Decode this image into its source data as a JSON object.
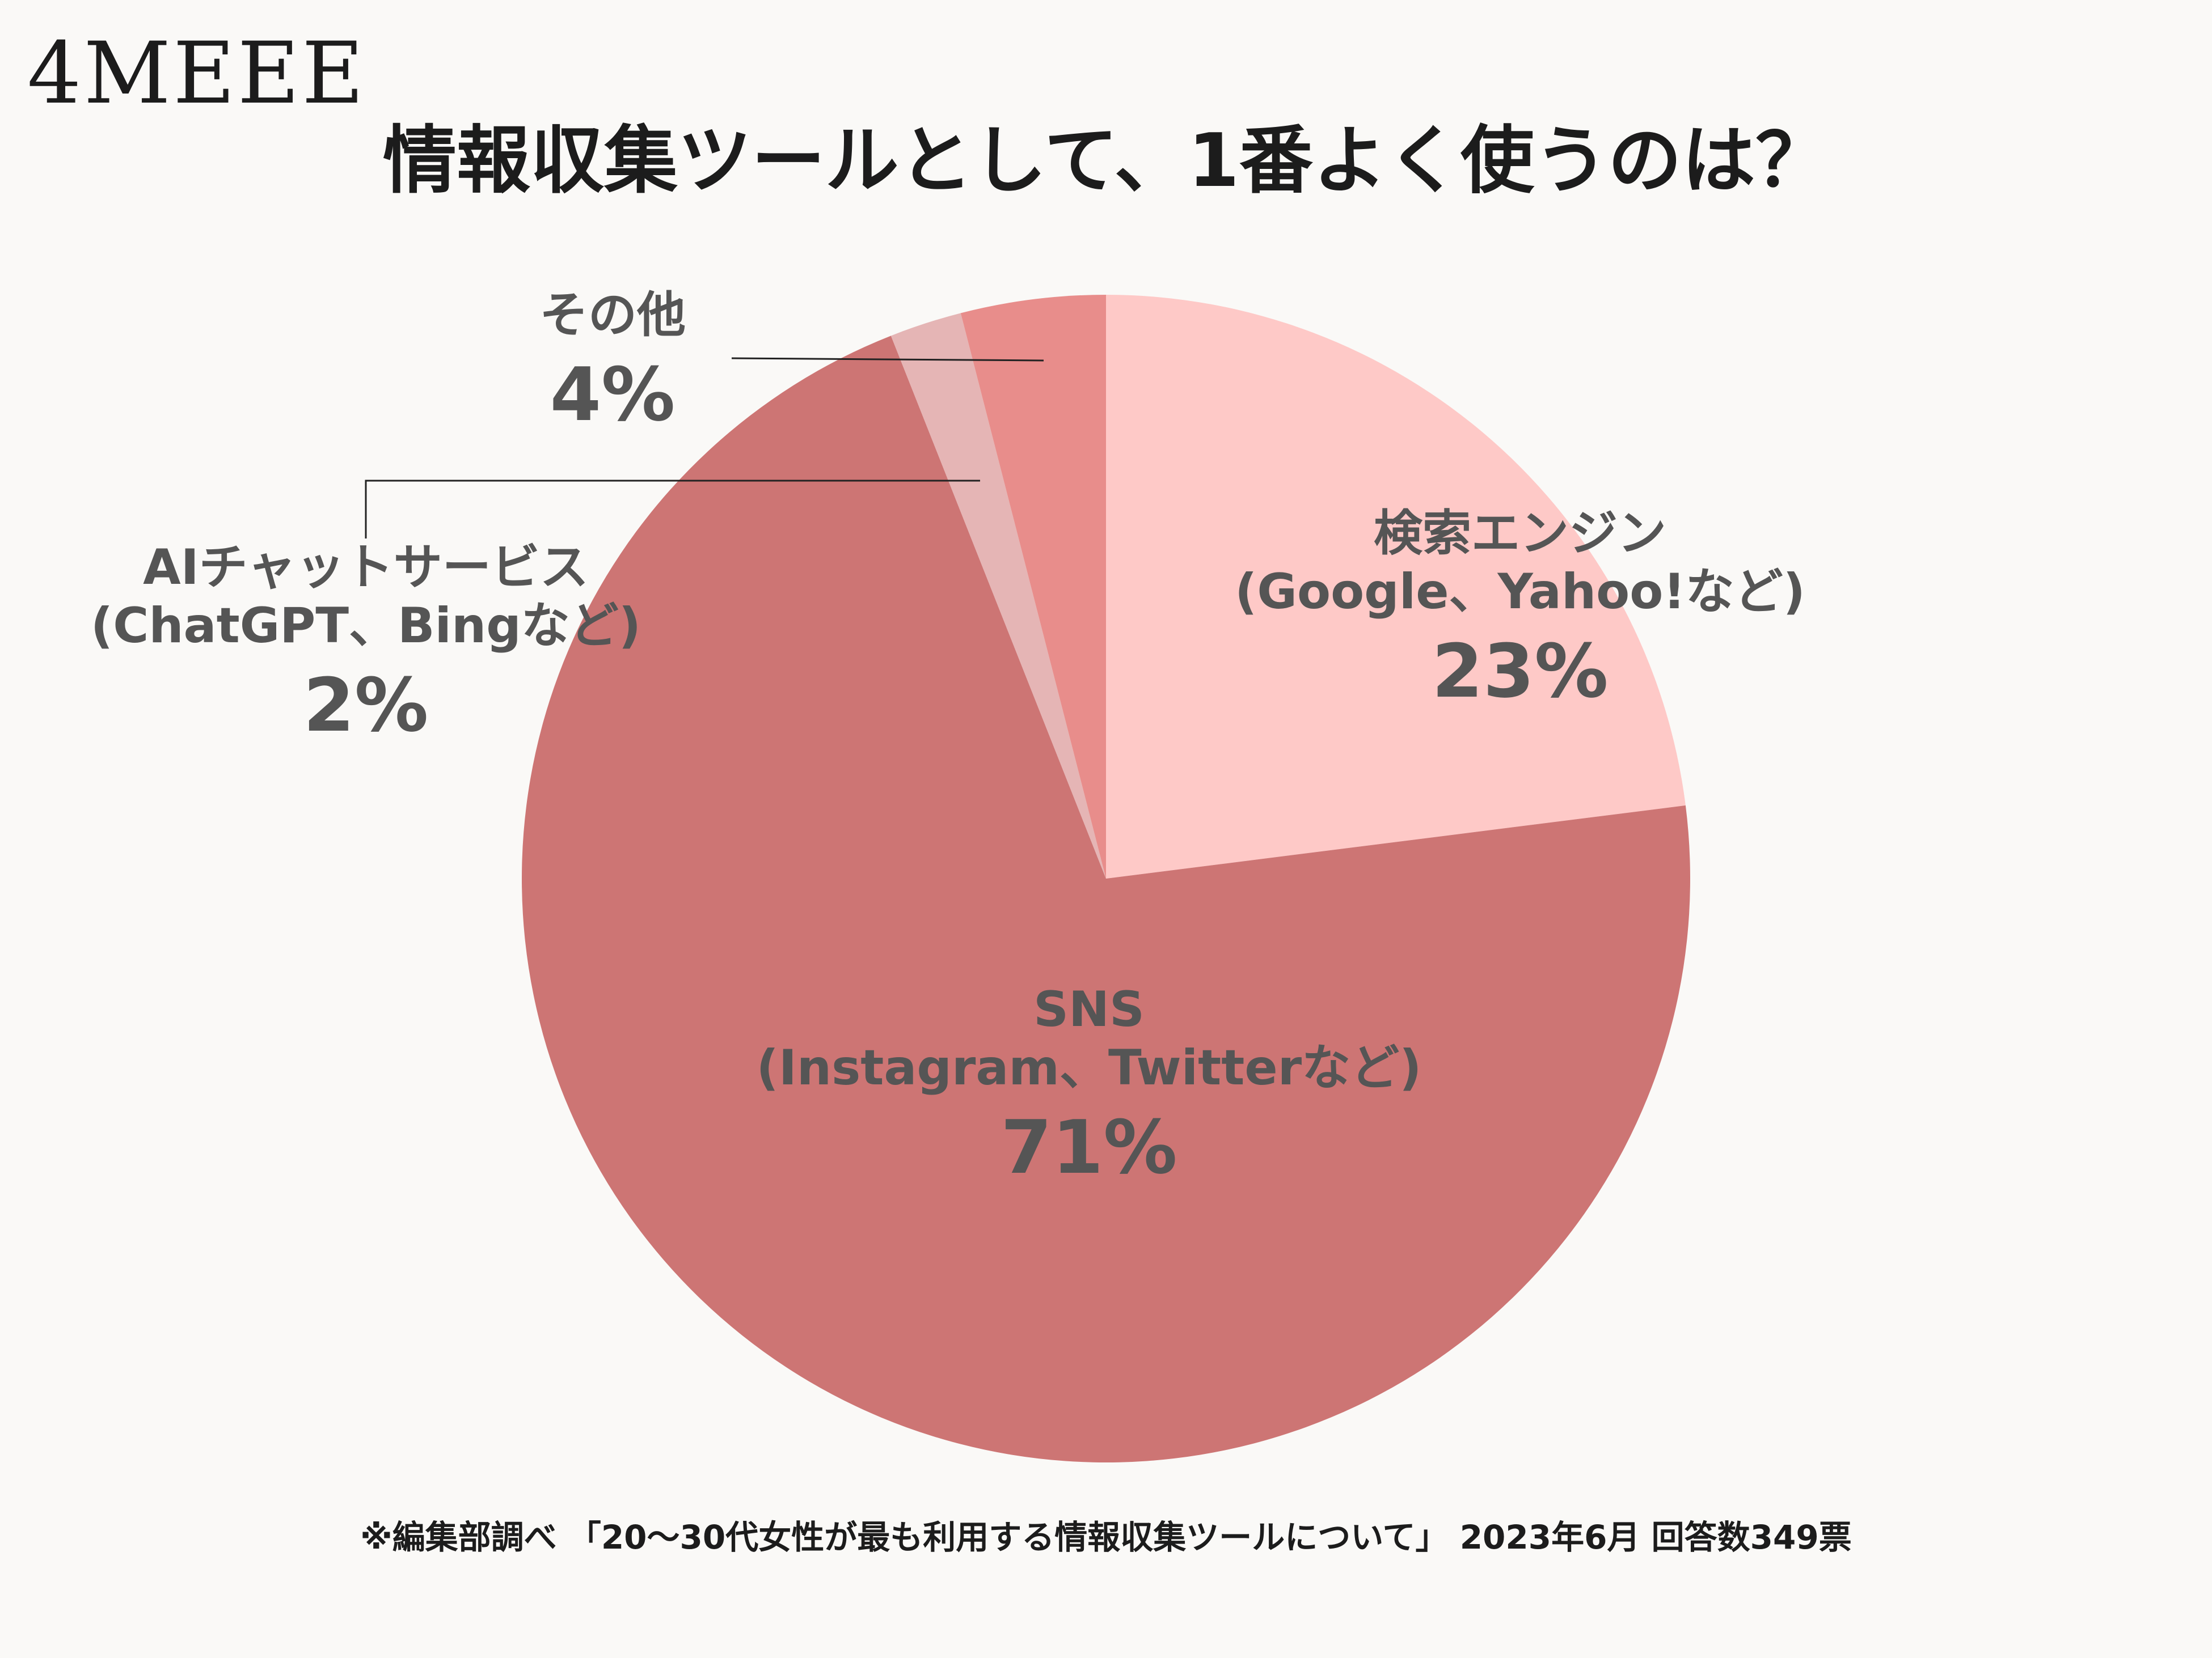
{
  "logo": "4MEEE",
  "title": "情報収集ツールとして、1番よく使うのは？",
  "footnote": "※編集部調べ 「20〜30代女性が最も利用する情報収集ツールについて」 2023年6月 回答数349票",
  "chart_data": {
    "type": "pie",
    "title": "情報収集ツールとして、1番よく使うのは？",
    "slices": [
      {
        "line1": "検索エンジン",
        "line2": "(Google、Yahoo!など)",
        "pct_label": "23%",
        "value": 23,
        "color": "#fec9c7"
      },
      {
        "line1": "SNS",
        "line2": "(Instagram、Twitterなど)",
        "pct_label": "71%",
        "value": 71,
        "color": "#cd7574"
      },
      {
        "line1": "AIチャットサービス",
        "line2": "(ChatGPT、Bingなど)",
        "pct_label": "2%",
        "value": 2,
        "color": "#e5b5b5"
      },
      {
        "line1": "その他",
        "line2": "",
        "pct_label": "4%",
        "value": 4,
        "color": "#e88d8b"
      }
    ]
  }
}
